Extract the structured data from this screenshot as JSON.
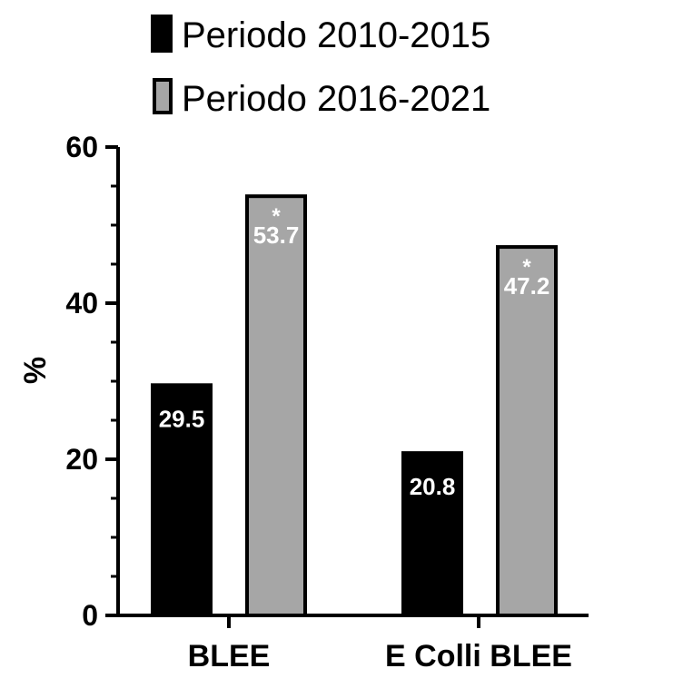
{
  "chart_data": {
    "type": "bar",
    "categories": [
      "BLEE",
      "E Colli BLEE"
    ],
    "series": [
      {
        "name": "Periodo 2010-2015",
        "color": "#000000",
        "values": [
          29.5,
          20.8
        ],
        "labels": [
          "29.5",
          "20.8"
        ],
        "marks": [
          "",
          ""
        ]
      },
      {
        "name": "Periodo 2016-2021",
        "color": "#a6a6a6",
        "values": [
          53.7,
          47.2
        ],
        "labels": [
          "53.7",
          "47.2"
        ],
        "marks": [
          "*",
          "*"
        ]
      }
    ],
    "ylabel": "%",
    "ylim": [
      0,
      60
    ],
    "yticks": [
      "0",
      "20",
      "40",
      "60"
    ],
    "legend_position": "top",
    "grid": false
  }
}
